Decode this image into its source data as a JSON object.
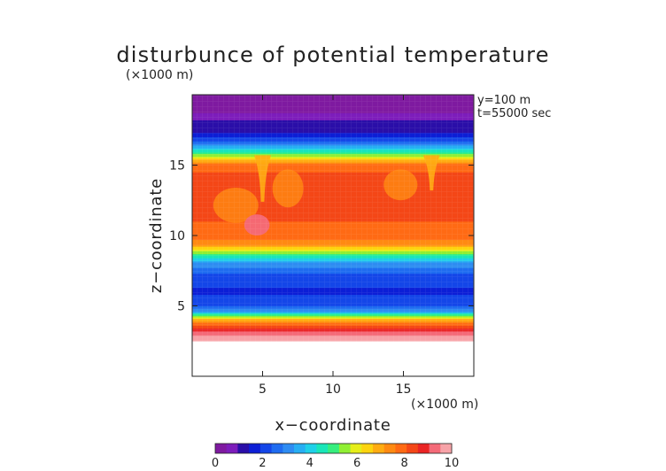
{
  "chart_data": {
    "type": "heatmap",
    "title": "disturbunce of potential temperature",
    "scale_label_z": "(×1000 m)",
    "scale_label_x": "(×1000 m)",
    "xlabel": "x−coordinate",
    "ylabel": "z−coordinate",
    "annotations": [
      "y=100 m",
      "t=55000 sec"
    ],
    "xlim": [
      0,
      20
    ],
    "ylim": [
      0,
      20
    ],
    "xticks": [
      5,
      10,
      15
    ],
    "yticks": [
      5,
      10,
      15
    ],
    "xtick_labels": [
      "5",
      "10",
      "15"
    ],
    "ytick_labels": [
      "5",
      "10",
      "15"
    ],
    "colorbar": {
      "min": 0,
      "max": 10,
      "ticks": [
        0,
        2,
        4,
        6,
        8,
        10
      ],
      "tick_labels": [
        "0",
        "2",
        "4",
        "6",
        "8",
        "10"
      ],
      "colors": [
        "#7f1aa0",
        "#7d1dbb",
        "#2a0ea8",
        "#0d1fd6",
        "#1446e8",
        "#1f6cf0",
        "#2e8cf2",
        "#27aef3",
        "#1fd0e8",
        "#19e6b8",
        "#36ee7e",
        "#90ef34",
        "#e6ee1a",
        "#fdd40f",
        "#ffac12",
        "#ff8a12",
        "#ff6a14",
        "#f44717",
        "#ea2424",
        "#f46a78",
        "#f7a3a8"
      ]
    },
    "profile": [
      {
        "z": 2.2,
        "value": null
      },
      {
        "z": 2.5,
        "value": 10.0
      },
      {
        "z": 3.0,
        "value": 9.4
      },
      {
        "z": 3.5,
        "value": 8.4
      },
      {
        "z": 4.0,
        "value": 7.0
      },
      {
        "z": 4.3,
        "value": 5.2
      },
      {
        "z": 4.6,
        "value": 3.4
      },
      {
        "z": 5.0,
        "value": 2.3
      },
      {
        "z": 6.0,
        "value": 1.8
      },
      {
        "z": 7.0,
        "value": 2.1
      },
      {
        "z": 8.0,
        "value": 3.2
      },
      {
        "z": 8.5,
        "value": 4.5
      },
      {
        "z": 9.0,
        "value": 6.0
      },
      {
        "z": 9.3,
        "value": 7.3
      },
      {
        "z": 10.0,
        "value": 7.8
      },
      {
        "z": 11.0,
        "value": 8.1
      },
      {
        "z": 12.0,
        "value": 8.4
      },
      {
        "z": 13.0,
        "value": 8.3
      },
      {
        "z": 14.0,
        "value": 8.3
      },
      {
        "z": 15.0,
        "value": 7.9
      },
      {
        "z": 15.5,
        "value": 6.2
      },
      {
        "z": 16.0,
        "value": 4.5
      },
      {
        "z": 16.6,
        "value": 2.6
      },
      {
        "z": 17.2,
        "value": 1.5
      },
      {
        "z": 18.2,
        "value": 1.0
      },
      {
        "z": 18.8,
        "value": 0.4
      },
      {
        "z": 20.0,
        "value": 0.2
      }
    ],
    "features": [
      {
        "type": "plume",
        "x": 5.0,
        "z_top": 15.7,
        "z_bottom": 12.4,
        "value": 6.9,
        "width": 0.6
      },
      {
        "type": "plume",
        "x": 17.0,
        "z_top": 15.7,
        "z_bottom": 13.2,
        "value": 6.9,
        "width": 0.6
      },
      {
        "type": "cold-patch",
        "x": 3.1,
        "z_top": 13.4,
        "z_bottom": 10.9,
        "value": 7.5,
        "width": 1.6
      },
      {
        "type": "cold-patch",
        "x": 6.8,
        "z_top": 14.7,
        "z_bottom": 12.0,
        "value": 7.6,
        "width": 1.1
      },
      {
        "type": "cold-patch",
        "x": 14.8,
        "z_top": 14.7,
        "z_bottom": 12.5,
        "value": 7.6,
        "width": 1.2
      },
      {
        "type": "warm-core",
        "x": 4.6,
        "z_top": 11.5,
        "z_bottom": 10.0,
        "value": 9.3,
        "width": 0.9
      }
    ]
  }
}
